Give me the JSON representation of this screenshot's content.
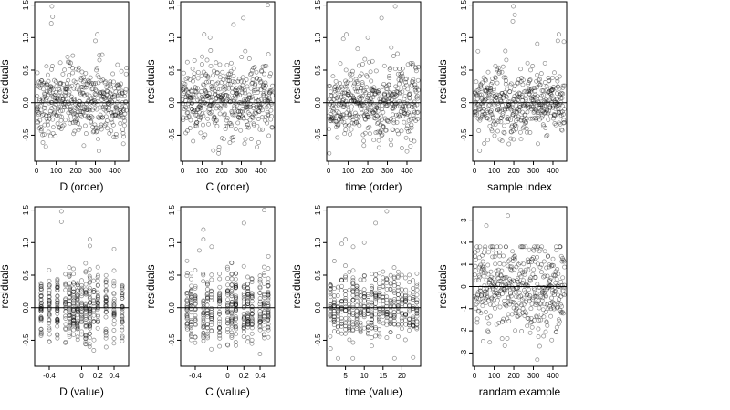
{
  "figure": {
    "description_free": true,
    "panels_count": 8
  },
  "chart_data": [
    {
      "type": "scatter",
      "xlabel": "D (order)",
      "ylabel": "residuals",
      "xlim": [
        -10,
        470
      ],
      "ylim": [
        -0.9,
        1.55
      ],
      "xticks": [
        0,
        100,
        200,
        300,
        400
      ],
      "yticks": [
        -0.5,
        0.0,
        0.5,
        1.0,
        1.5
      ],
      "hline": 0,
      "n_points": 460,
      "x_mode": "index",
      "spread": 0.27,
      "high_points": [
        [
          78,
          1.48
        ],
        [
          82,
          1.32
        ],
        [
          75,
          1.22
        ],
        [
          310,
          1.05
        ],
        [
          300,
          0.95
        ]
      ]
    },
    {
      "type": "scatter",
      "xlabel": "C (order)",
      "ylabel": "residuals",
      "xlim": [
        -10,
        470
      ],
      "ylim": [
        -0.9,
        1.55
      ],
      "xticks": [
        0,
        100,
        200,
        300,
        400
      ],
      "yticks": [
        -0.5,
        0.0,
        0.5,
        1.0,
        1.5
      ],
      "hline": 0,
      "n_points": 460,
      "x_mode": "index",
      "spread": 0.27,
      "high_points": [
        [
          435,
          1.5
        ],
        [
          310,
          1.3
        ],
        [
          260,
          1.2
        ],
        [
          140,
          1.0
        ],
        [
          110,
          1.05
        ]
      ]
    },
    {
      "type": "scatter",
      "xlabel": "time (order)",
      "ylabel": "residuals",
      "xlim": [
        -10,
        470
      ],
      "ylim": [
        -0.9,
        1.55
      ],
      "xticks": [
        0,
        100,
        200,
        300,
        400
      ],
      "yticks": [
        -0.5,
        0.0,
        0.5,
        1.0,
        1.5
      ],
      "hline": 0,
      "n_points": 460,
      "x_mode": "index",
      "spread": 0.27,
      "high_points": [
        [
          340,
          1.48
        ],
        [
          270,
          1.3
        ],
        [
          90,
          1.05
        ],
        [
          75,
          0.98
        ],
        [
          200,
          1.0
        ]
      ]
    },
    {
      "type": "scatter",
      "xlabel": "sample index",
      "ylabel": "residuals",
      "xlim": [
        -10,
        470
      ],
      "ylim": [
        -0.9,
        1.55
      ],
      "xticks": [
        0,
        100,
        200,
        300,
        400
      ],
      "yticks": [
        -0.5,
        0.0,
        0.5,
        1.0,
        1.5
      ],
      "hline": 0,
      "n_points": 460,
      "x_mode": "index",
      "spread": 0.27,
      "high_points": [
        [
          198,
          1.48
        ],
        [
          205,
          1.35
        ],
        [
          195,
          1.25
        ],
        [
          430,
          1.05
        ],
        [
          425,
          0.95
        ]
      ]
    },
    {
      "type": "scatter",
      "xlabel": "D (value)",
      "ylabel": "residuals",
      "xlim": [
        -0.58,
        0.58
      ],
      "ylim": [
        -0.9,
        1.55
      ],
      "xticks": [
        -0.4,
        0.0,
        0.2,
        0.4
      ],
      "yticks": [
        -0.5,
        0.0,
        0.5,
        1.0,
        1.5
      ],
      "hline": 0,
      "n_points": 460,
      "x_mode": "values",
      "x_levels": [
        -0.5,
        -0.4,
        -0.3,
        -0.2,
        -0.15,
        -0.1,
        -0.05,
        0.0,
        0.05,
        0.1,
        0.15,
        0.2,
        0.3,
        0.4,
        0.5
      ],
      "spread": 0.27,
      "high_points": [
        [
          -0.25,
          1.48
        ],
        [
          -0.25,
          1.32
        ],
        [
          0.1,
          1.05
        ],
        [
          0.1,
          0.95
        ],
        [
          0.4,
          0.9
        ]
      ]
    },
    {
      "type": "scatter",
      "xlabel": "C (value)",
      "ylabel": "residuals",
      "xlim": [
        -0.58,
        0.58
      ],
      "ylim": [
        -0.9,
        1.55
      ],
      "xticks": [
        -0.4,
        0.0,
        0.2,
        0.4
      ],
      "yticks": [
        -0.5,
        0.0,
        0.5,
        1.0,
        1.5
      ],
      "hline": 0,
      "n_points": 460,
      "x_mode": "values",
      "x_levels": [
        -0.5,
        -0.45,
        -0.4,
        -0.3,
        -0.25,
        -0.2,
        -0.1,
        0.0,
        0.05,
        0.1,
        0.2,
        0.25,
        0.3,
        0.4,
        0.45,
        0.5
      ],
      "spread": 0.27,
      "high_points": [
        [
          0.45,
          1.5
        ],
        [
          0.2,
          1.3
        ],
        [
          -0.3,
          1.2
        ],
        [
          -0.3,
          1.05
        ],
        [
          -0.35,
          0.88
        ]
      ]
    },
    {
      "type": "scatter",
      "xlabel": "time (value)",
      "ylabel": "residuals",
      "xlim": [
        0,
        25
      ],
      "ylim": [
        -0.9,
        1.55
      ],
      "xticks": [
        5,
        10,
        15,
        20
      ],
      "yticks": [
        -0.5,
        0.0,
        0.5,
        1.0,
        1.5
      ],
      "hline": 0,
      "n_points": 460,
      "x_mode": "values",
      "x_levels": [
        1,
        2,
        3,
        4,
        5,
        6,
        7,
        8,
        9,
        10,
        11,
        12,
        13,
        14,
        15,
        16,
        17,
        18,
        19,
        20,
        21,
        22,
        23,
        24
      ],
      "spread": 0.27,
      "high_points": [
        [
          16,
          1.48
        ],
        [
          13,
          1.3
        ],
        [
          5,
          1.05
        ],
        [
          4,
          0.98
        ],
        [
          10,
          1.0
        ]
      ]
    },
    {
      "type": "scatter",
      "xlabel": "randam example",
      "ylabel": "residuals",
      "xlim": [
        -10,
        470
      ],
      "ylim": [
        -3.6,
        3.6
      ],
      "xticks": [
        0,
        100,
        200,
        300,
        400
      ],
      "yticks": [
        -3,
        -2,
        -1,
        0,
        1,
        2,
        3
      ],
      "hline": 0,
      "n_points": 460,
      "x_mode": "index",
      "spread": 1.0,
      "high_points": [
        [
          170,
          3.2
        ],
        [
          60,
          2.75
        ],
        [
          320,
          -3.3
        ]
      ]
    }
  ]
}
